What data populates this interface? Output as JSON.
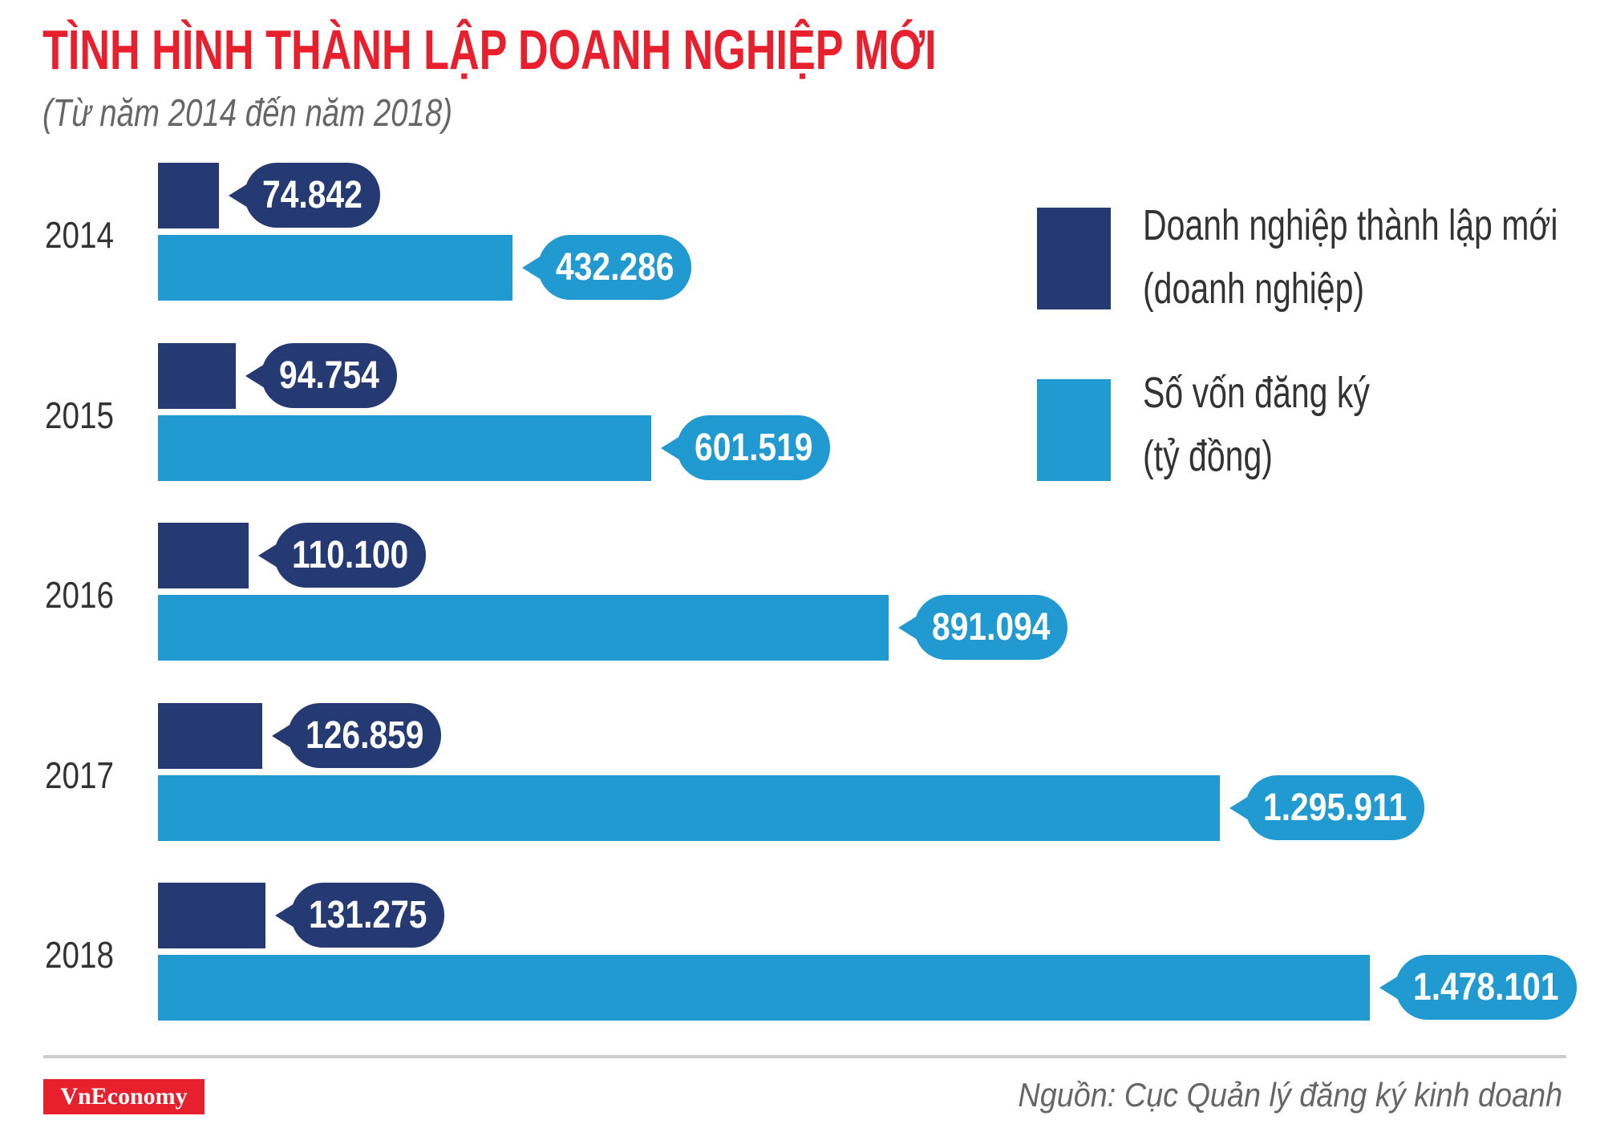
{
  "header": {
    "title": "TÌNH HÌNH THÀNH LẬP DOANH NGHIỆP MỚI",
    "subtitle": "(Từ năm 2014 đến năm 2018)"
  },
  "legend": {
    "items": [
      {
        "line1": "Doanh nghiệp thành lập mới",
        "line2": "(doanh nghiệp)",
        "color": "#253a73"
      },
      {
        "line1": "Số vốn đăng ký",
        "line2": "(tỷ đồng)",
        "color": "#2199d1"
      }
    ]
  },
  "footer": {
    "logo": "VnEconomy",
    "source": "Nguồn: Cục Quản lý đăng ký kinh doanh"
  },
  "colors": {
    "title_red": "#e8202e",
    "navy": "#253a73",
    "blue": "#2199d1",
    "divider": "#cccccc"
  },
  "chart_data": {
    "type": "bar",
    "orientation": "horizontal",
    "title": "TÌNH HÌNH THÀNH LẬP DOANH NGHIỆP MỚI",
    "subtitle": "(Từ năm 2014 đến năm 2018)",
    "categories": [
      "2014",
      "2015",
      "2016",
      "2017",
      "2018"
    ],
    "series": [
      {
        "name": "Doanh nghiệp thành lập mới (doanh nghiệp)",
        "color": "#253a73",
        "values": [
          74842,
          94754,
          110100,
          126859,
          131275
        ],
        "labels": [
          "74.842",
          "94.754",
          "110.100",
          "126.859",
          "131.275"
        ]
      },
      {
        "name": "Số vốn đăng ký (tỷ đồng)",
        "color": "#2199d1",
        "values": [
          432286,
          601519,
          891094,
          1295911,
          1478101
        ],
        "labels": [
          "432.286",
          "601.519",
          "891.094",
          "1.295.911",
          "1.478.101"
        ]
      }
    ],
    "xlabel": "",
    "ylabel": "",
    "grid": false,
    "legend_position": "right-top",
    "source": "Nguồn: Cục Quản lý đăng ký kinh doanh"
  }
}
